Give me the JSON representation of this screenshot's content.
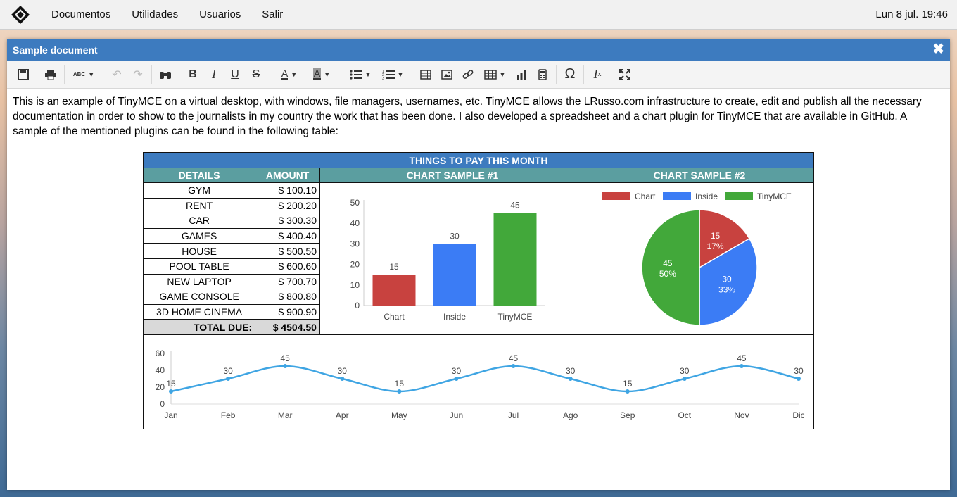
{
  "menubar": {
    "items": [
      "Documentos",
      "Utilidades",
      "Usuarios",
      "Salir"
    ],
    "clock": "Lun 8 jul. 19:46"
  },
  "window": {
    "title": "Sample document",
    "close_glyph": "✖"
  },
  "toolbar": {
    "icons": [
      "save-icon",
      "print-icon",
      "spellcheck-icon",
      "undo-icon",
      "redo-icon",
      "find-icon",
      "bold-icon",
      "italic-icon",
      "underline-icon",
      "strikethrough-icon",
      "text-color-icon",
      "background-color-icon",
      "bullet-list-icon",
      "numbered-list-icon",
      "spreadsheet-icon",
      "image-icon",
      "link-icon",
      "table-icon",
      "chart-icon",
      "calculator-icon",
      "special-char-icon",
      "clear-format-icon",
      "fullscreen-icon"
    ],
    "spellcheck_label": "ABC"
  },
  "document": {
    "paragraph": "This is an example of TinyMCE on a virtual desktop, with windows, file managers, usernames, etc. TinyMCE allows the LRusso.com infrastructure to create, edit and publish all the necessary documentation in order to show to the journalists in my country the work that has been done. I also developed a spreadsheet and a chart plugin for TinyMCE that are available in GitHub. A sample of the mentioned plugins can be found in the following table:"
  },
  "table": {
    "title": "THINGS TO PAY THIS MONTH",
    "headers": [
      "DETAILS",
      "AMOUNT",
      "CHART SAMPLE #1",
      "CHART SAMPLE #2"
    ],
    "rows": [
      {
        "detail": "GYM",
        "amount": "$ 100.10"
      },
      {
        "detail": "RENT",
        "amount": "$ 200.20"
      },
      {
        "detail": "CAR",
        "amount": "$ 300.30"
      },
      {
        "detail": "GAMES",
        "amount": "$ 400.40"
      },
      {
        "detail": "HOUSE",
        "amount": "$ 500.50"
      },
      {
        "detail": "POOL TABLE",
        "amount": "$ 600.60"
      },
      {
        "detail": "NEW LAPTOP",
        "amount": "$ 700.70"
      },
      {
        "detail": "GAME CONSOLE",
        "amount": "$ 800.80"
      },
      {
        "detail": "3D HOME CINEMA",
        "amount": "$ 900.90"
      }
    ],
    "total_label": "TOTAL DUE:",
    "total_value": "$ 4504.50"
  },
  "colors": {
    "red": "#c8423f",
    "blue": "#3b7cf5",
    "green": "#42a83a",
    "line": "#3fa5e3"
  },
  "chart_data": [
    {
      "type": "bar",
      "categories": [
        "Chart",
        "Inside",
        "TinyMCE"
      ],
      "values": [
        15,
        30,
        45
      ],
      "yticks": [
        0,
        10,
        20,
        30,
        40,
        50
      ],
      "ylim": [
        0,
        50
      ]
    },
    {
      "type": "pie",
      "labels": [
        "Chart",
        "Inside",
        "TinyMCE"
      ],
      "values": [
        15,
        30,
        45
      ],
      "percent_labels": [
        "17%",
        "33%",
        "50%"
      ],
      "legend": "top"
    },
    {
      "type": "line",
      "categories": [
        "Jan",
        "Feb",
        "Mar",
        "Apr",
        "May",
        "Jun",
        "Jul",
        "Ago",
        "Sep",
        "Oct",
        "Nov",
        "Dic"
      ],
      "values": [
        15,
        30,
        45,
        30,
        15,
        30,
        45,
        30,
        15,
        30,
        45,
        30
      ],
      "yticks": [
        0,
        20,
        40,
        60
      ],
      "ylim": [
        0,
        60
      ]
    }
  ]
}
